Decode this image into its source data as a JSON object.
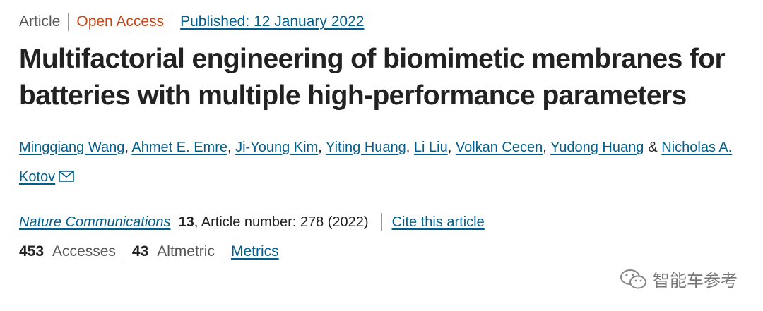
{
  "header": {
    "type": "Article",
    "access": "Open Access",
    "published": "Published: 12 January 2022"
  },
  "title": "Multifactorial engineering of biomimetic membranes for batteries with multiple high-performance parameters",
  "authors": [
    {
      "name": "Mingqiang Wang",
      "sep": ","
    },
    {
      "name": "Ahmet E. Emre",
      "sep": ","
    },
    {
      "name": "Ji-Young Kim",
      "sep": ","
    },
    {
      "name": "Yiting Huang",
      "sep": ","
    },
    {
      "name": "Li Liu",
      "sep": ","
    },
    {
      "name": "Volkan Cecen",
      "sep": ","
    },
    {
      "name": "Yudong Huang",
      "sep": "&"
    },
    {
      "name": "Nicholas A. Kotov"
    }
  ],
  "citation": {
    "journal": "Nature Communications",
    "volume": "13",
    "details": ", Article number: 278 (2022)",
    "cite_link": "Cite this article"
  },
  "metrics": {
    "accesses": 453,
    "accesses_label": "Accesses",
    "altmetric": 43,
    "altmetric_label": "Altmetric",
    "link": "Metrics"
  },
  "watermark": "智能车参考"
}
